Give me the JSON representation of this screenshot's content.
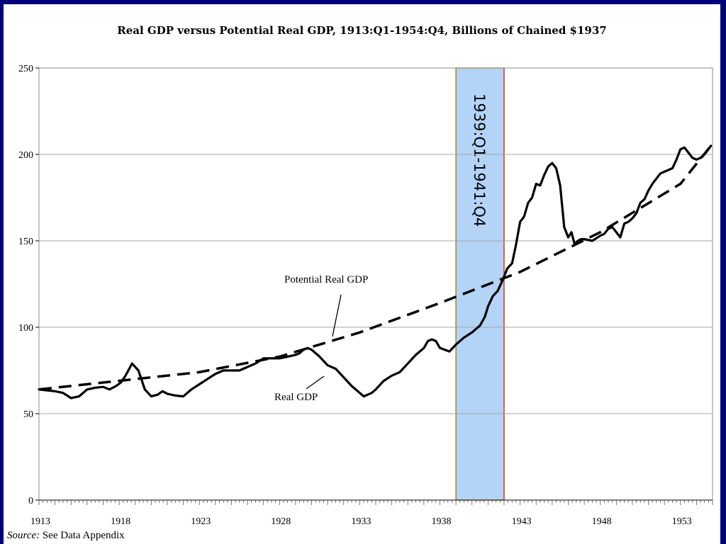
{
  "title": "Real GDP versus Potential Real GDP, 1913:Q1-1954:Q4, Billions of Chained $1937",
  "source": {
    "label": "Source:",
    "text": "See Data Appendix"
  },
  "colors": {
    "background_border": "#00007a",
    "band_fill": "#b3d4f6",
    "band_left_edge": "#9c8a28",
    "band_right_edge": "#e03018",
    "series": "#000000",
    "grid": "#a6a6a6"
  },
  "chart_data": {
    "type": "line",
    "title": "Real GDP versus Potential Real GDP, 1913:Q1-1954:Q4, Billions of Chained $1937",
    "xlabel": "",
    "ylabel": "",
    "xlim": [
      1913,
      1955
    ],
    "ylim": [
      0,
      250
    ],
    "yticks": [
      0,
      50,
      100,
      150,
      200,
      250
    ],
    "xticks": [
      1913,
      1918,
      1923,
      1928,
      1933,
      1938,
      1943,
      1948,
      1953
    ],
    "grid": "horizontal",
    "legend": "none",
    "shaded_region": {
      "label": "1939:Q1-1941:Q4",
      "start": 1939,
      "end": 1942
    },
    "annotations": [
      {
        "text": "Potential Real GDP",
        "series": "Potential Real GDP"
      },
      {
        "text": "Real GDP",
        "series": "Real GDP"
      }
    ],
    "series": [
      {
        "name": "Real GDP",
        "style": "solid",
        "x": [
          1913.0,
          1913.5,
          1914.0,
          1914.5,
          1915.0,
          1915.5,
          1916.0,
          1916.5,
          1917.0,
          1917.4,
          1917.8,
          1918.1,
          1918.4,
          1918.8,
          1919.2,
          1919.6,
          1920.0,
          1920.4,
          1920.7,
          1921.0,
          1921.5,
          1922.0,
          1922.5,
          1923.0,
          1923.5,
          1924.0,
          1924.5,
          1925.0,
          1925.5,
          1926.0,
          1926.5,
          1927.0,
          1927.5,
          1928.0,
          1928.5,
          1929.0,
          1929.25,
          1929.5,
          1929.75,
          1930.0,
          1930.5,
          1931.0,
          1931.5,
          1932.0,
          1932.5,
          1933.0,
          1933.25,
          1933.5,
          1933.75,
          1934.0,
          1934.5,
          1935.0,
          1935.5,
          1936.0,
          1936.5,
          1937.0,
          1937.25,
          1937.5,
          1937.75,
          1938.0,
          1938.3,
          1938.6,
          1939.0,
          1939.5,
          1940.0,
          1940.5,
          1940.8,
          1941.0,
          1941.3,
          1941.6,
          1941.9,
          1942.2,
          1942.5,
          1942.75,
          1943.0,
          1943.25,
          1943.5,
          1943.75,
          1944.0,
          1944.25,
          1944.5,
          1944.75,
          1945.0,
          1945.25,
          1945.5,
          1945.75,
          1946.0,
          1946.2,
          1946.4,
          1946.6,
          1946.8,
          1947.0,
          1947.5,
          1948.0,
          1948.25,
          1948.5,
          1948.75,
          1949.0,
          1949.25,
          1949.5,
          1949.75,
          1950.0,
          1950.25,
          1950.5,
          1950.75,
          1951.0,
          1951.25,
          1951.5,
          1951.75,
          1952.0,
          1952.25,
          1952.5,
          1952.75,
          1953.0,
          1953.25,
          1953.5,
          1953.75,
          1954.0,
          1954.25,
          1954.5,
          1954.75,
          1954.9
        ],
        "values": [
          64,
          63.5,
          63,
          62,
          59,
          60,
          64,
          65,
          65.5,
          64,
          66,
          68,
          72,
          79,
          75,
          64,
          60,
          61,
          63,
          61.5,
          60.5,
          60,
          64,
          67,
          70,
          73,
          75,
          75,
          75,
          77,
          79,
          82,
          82,
          82,
          83,
          84,
          85,
          87,
          88,
          87,
          83,
          78,
          76,
          71,
          66,
          62,
          60,
          61,
          62,
          64,
          69,
          72,
          74,
          79,
          84,
          88,
          92,
          93,
          92,
          88,
          87,
          86,
          90,
          94,
          97,
          101,
          106,
          112,
          118,
          121,
          127,
          134,
          137,
          148,
          161,
          164,
          172,
          175,
          183,
          182,
          188,
          193,
          195,
          192,
          182,
          158,
          152,
          155,
          148,
          150,
          151,
          151,
          150,
          153,
          154,
          157,
          158,
          155,
          152,
          160,
          161,
          163,
          166,
          172,
          174,
          179,
          183,
          186,
          189,
          190,
          191,
          192,
          197,
          203,
          204,
          201,
          198,
          197,
          198,
          200,
          203,
          205
        ]
      },
      {
        "name": "Potential Real GDP",
        "style": "dashed",
        "x": [
          1913,
          1918,
          1923,
          1928,
          1933,
          1938,
          1943,
          1948,
          1953,
          1954.9
        ],
        "values": [
          64,
          69,
          74,
          83,
          97,
          114,
          132,
          155,
          183,
          205
        ]
      }
    ]
  }
}
